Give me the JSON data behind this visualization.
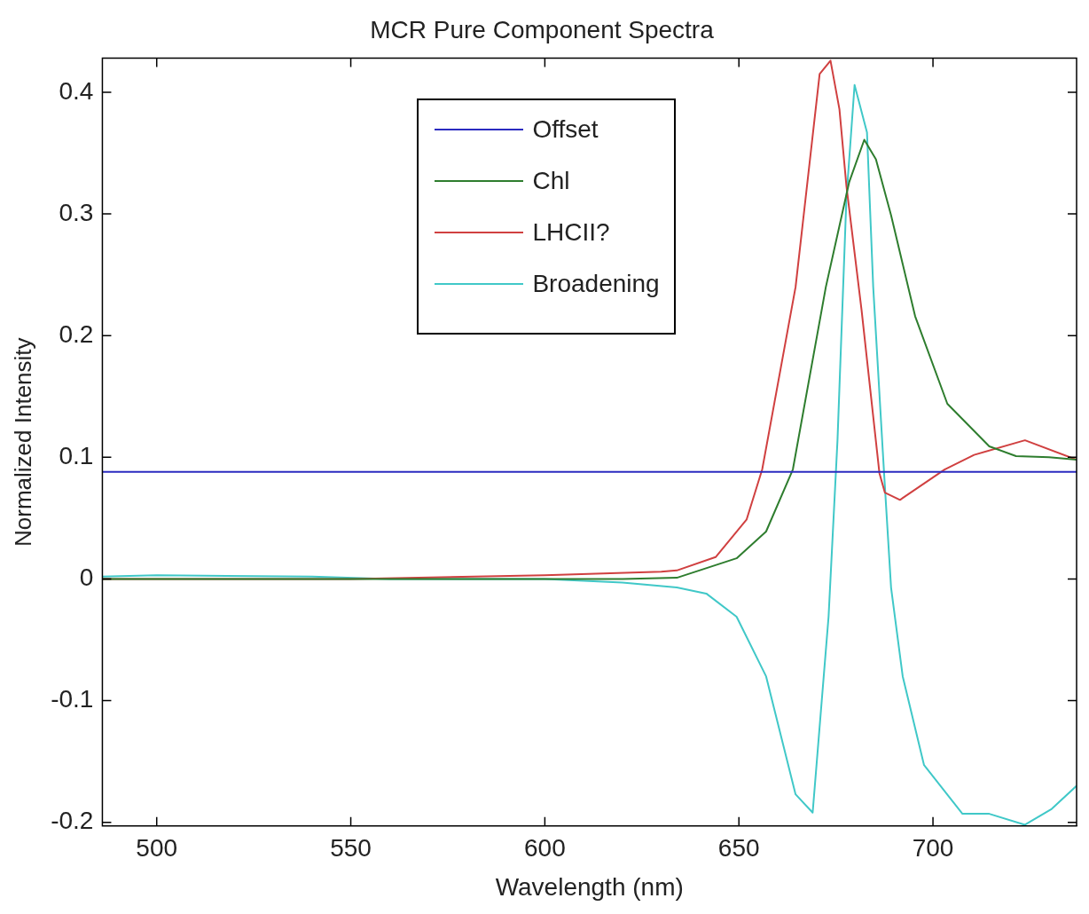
{
  "chart_data": {
    "type": "line",
    "title": "MCR Pure Component Spectra",
    "xlabel": "Wavelength (nm)",
    "ylabel": "Normalized Intensity",
    "xlim": [
      486,
      737
    ],
    "xticks": [
      500,
      550,
      600,
      650,
      700
    ],
    "ylim": [
      -0.203,
      0.428
    ],
    "yticks": [
      -0.2,
      -0.1,
      0,
      0.1,
      0.2,
      0.3,
      0.4
    ],
    "grid": false,
    "legend": "top left",
    "marker": "none",
    "line_style": "solid",
    "series": [
      {
        "name": "Offset",
        "color": "#2b2bc0",
        "x": [
          486,
          737
        ],
        "values": [
          0.088,
          0.088
        ]
      },
      {
        "name": "Chl",
        "color": "#2e7d2e",
        "x": [
          486,
          550,
          600,
          620,
          634,
          649.4,
          657,
          663.9,
          672.4,
          678.4,
          682.3,
          685.3,
          689.2,
          695.4,
          703.7,
          714.5,
          721.4,
          729.9,
          737
        ],
        "values": [
          0,
          0,
          0,
          0,
          0.001,
          0.017,
          0.039,
          0.09,
          0.24,
          0.326,
          0.361,
          0.345,
          0.299,
          0.216,
          0.144,
          0.109,
          0.101,
          0.1,
          0.098
        ]
      },
      {
        "name": "LHCII?",
        "color": "#d04040",
        "x": [
          486,
          550,
          600,
          630,
          634,
          644,
          652,
          656,
          664.6,
          670.8,
          673.6,
          675.9,
          677.7,
          681.6,
          686.2,
          687.6,
          691.5,
          703,
          710.6,
          723.7,
          737
        ],
        "values": [
          0,
          0,
          0.003,
          0.006,
          0.007,
          0.018,
          0.049,
          0.09,
          0.24,
          0.415,
          0.426,
          0.386,
          0.323,
          0.221,
          0.087,
          0.071,
          0.065,
          0.09,
          0.102,
          0.114,
          0.098
        ]
      },
      {
        "name": "Broadening",
        "color": "#40c8c8",
        "x": [
          486,
          500,
          540,
          560,
          600,
          620,
          634,
          641.6,
          649.4,
          657,
          664.6,
          669,
          673.1,
          675.4,
          677.7,
          679.8,
          683,
          684.6,
          687.4,
          689.2,
          692.2,
          697.7,
          707.6,
          714.5,
          723.7,
          730.6,
          737
        ],
        "values": [
          0.002,
          0.003,
          0.002,
          0,
          0,
          -0.003,
          -0.007,
          -0.012,
          -0.031,
          -0.08,
          -0.177,
          -0.192,
          -0.031,
          0.114,
          0.313,
          0.406,
          0.367,
          0.24,
          0.087,
          -0.007,
          -0.08,
          -0.153,
          -0.193,
          -0.193,
          -0.202,
          -0.189,
          -0.17
        ]
      }
    ]
  }
}
